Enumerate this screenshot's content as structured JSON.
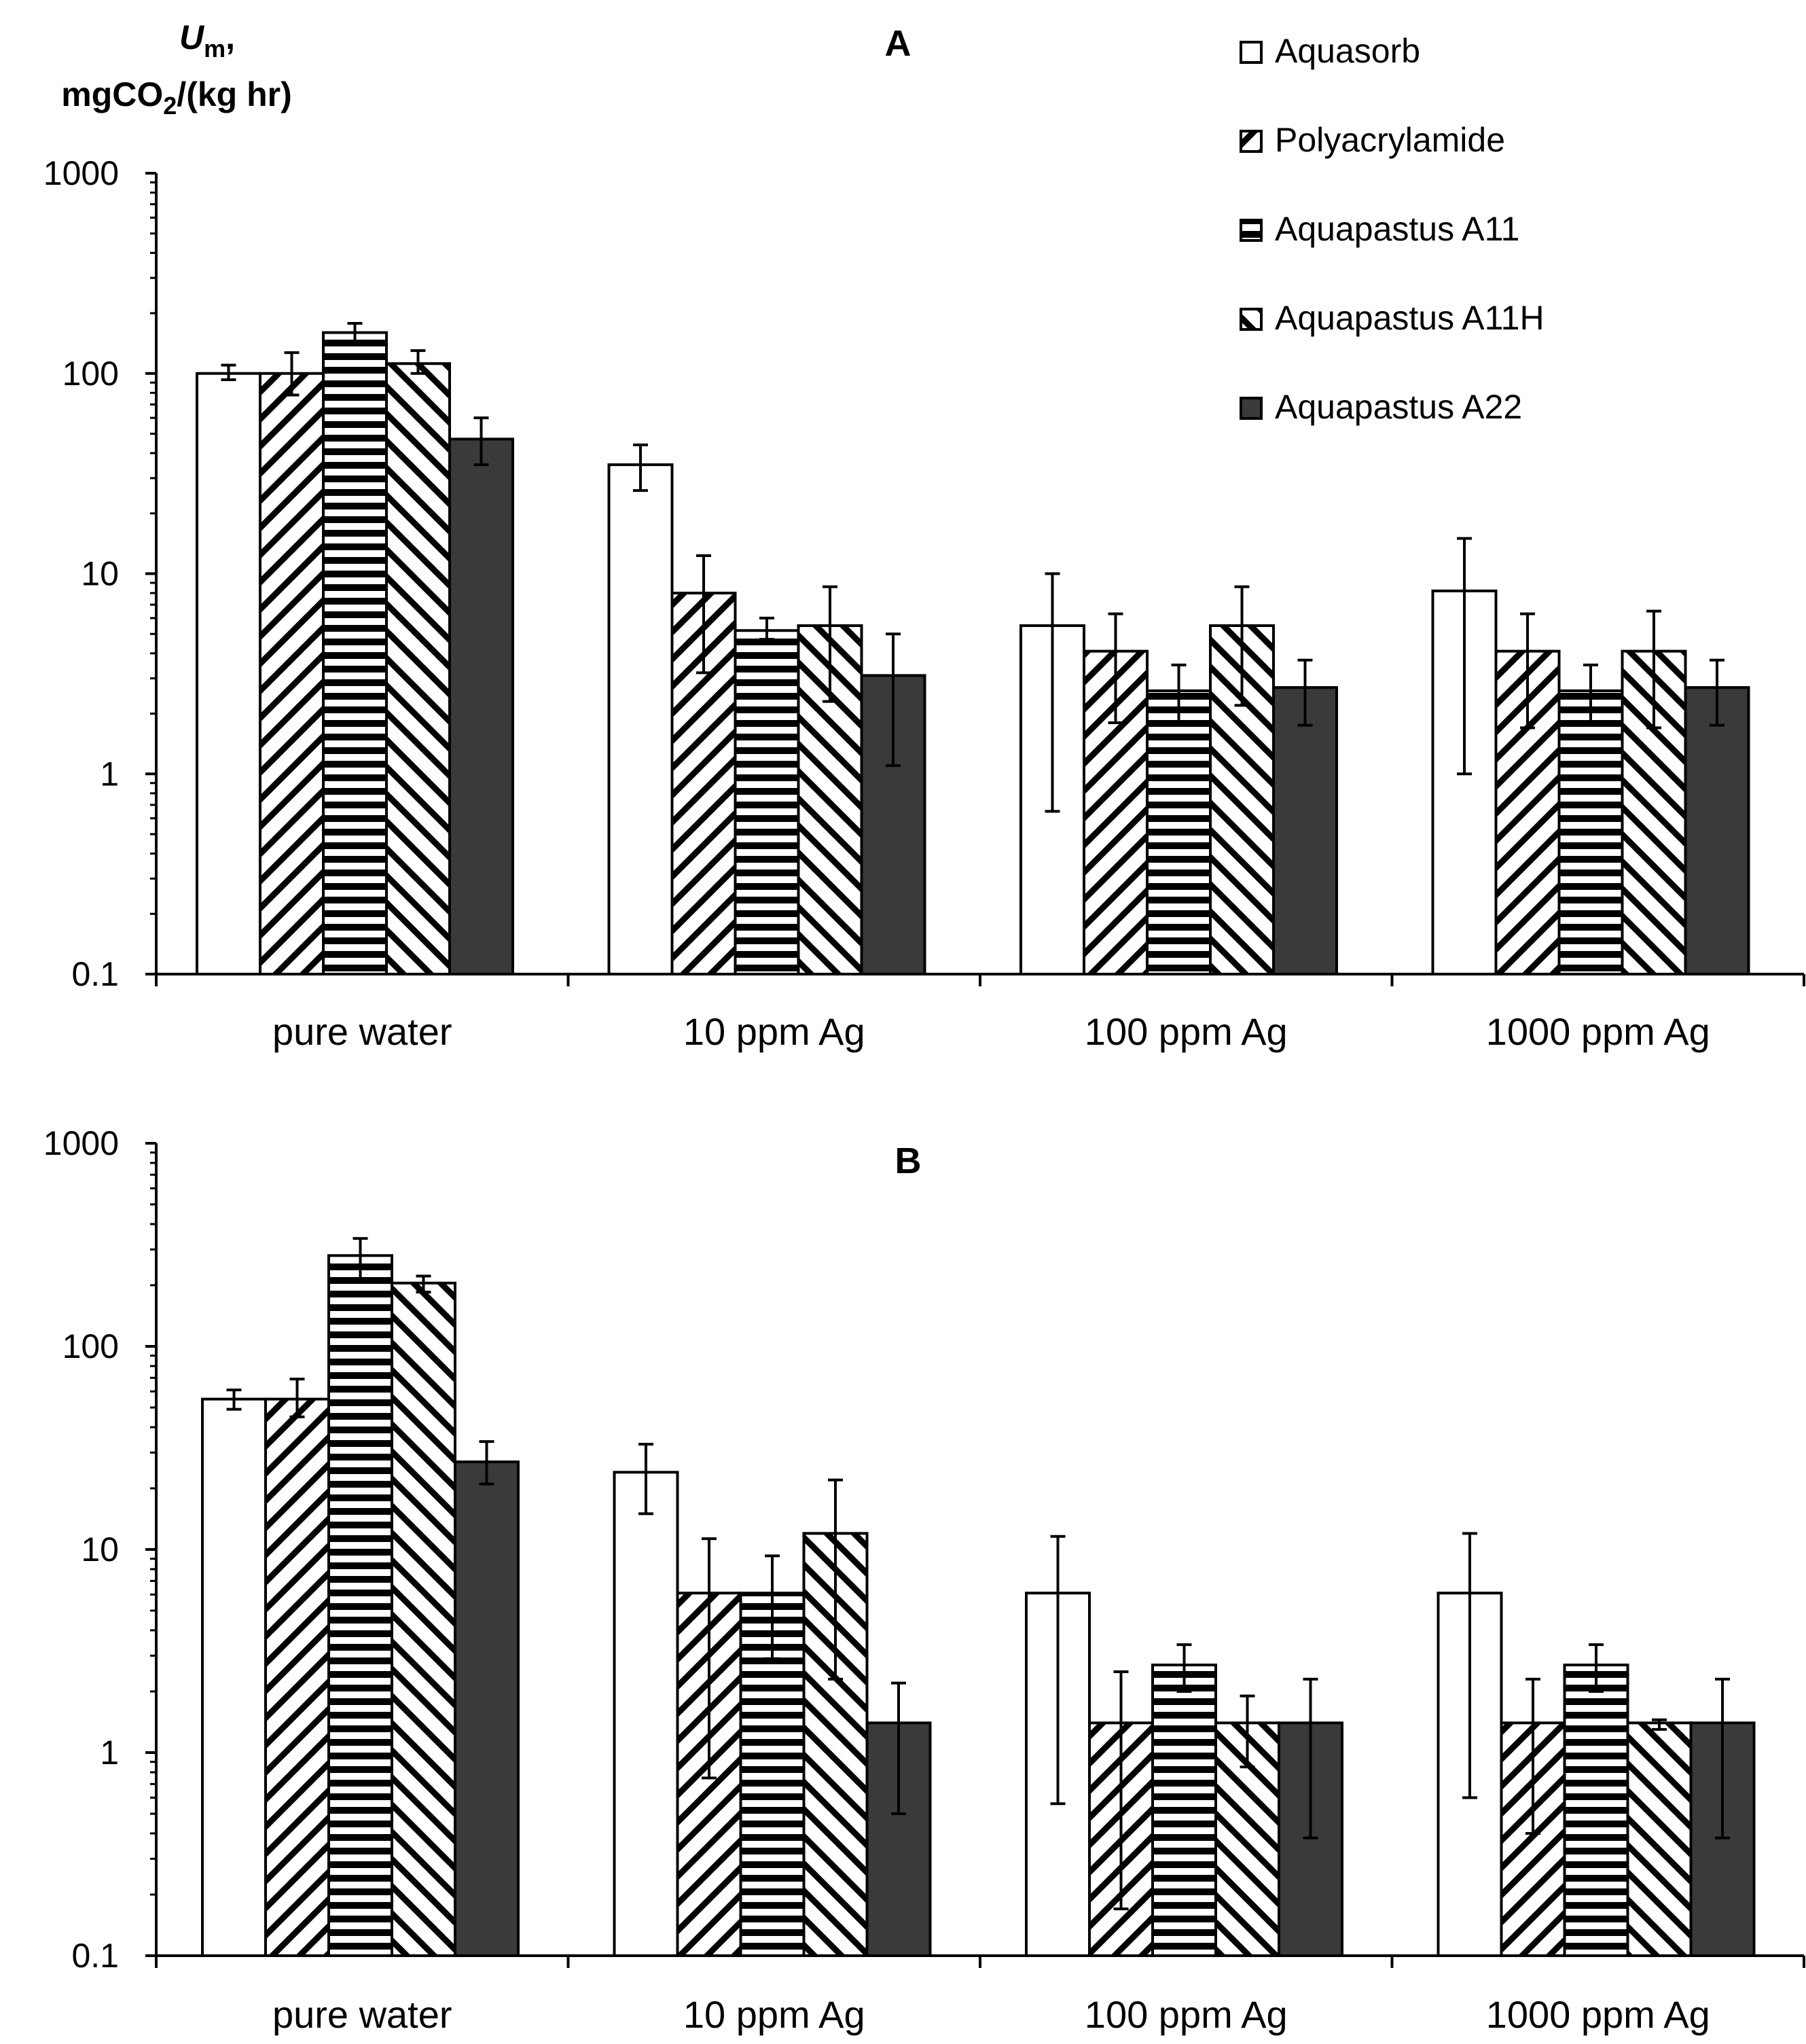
{
  "ylabel": {
    "symbol": "U",
    "subscript": "m",
    "suffix": ",",
    "units_pre": "mgCO",
    "units_sub": "2",
    "units_post": "/(kg hr)"
  },
  "legend": [
    {
      "name": "Aquasorb",
      "pattern": "white"
    },
    {
      "name": "Polyacrylamide",
      "pattern": "diag-up"
    },
    {
      "name": "Aquapastus A11",
      "pattern": "horiz"
    },
    {
      "name": "Aquapastus A11H",
      "pattern": "diag-down"
    },
    {
      "name": "Aquapastus A22",
      "pattern": "dark"
    }
  ],
  "colors": {
    "dark_fill": "#3a3a3a",
    "line": "#000000",
    "background": "#ffffff"
  },
  "chart_data": [
    {
      "type": "bar",
      "title": "A",
      "yscale": "log",
      "ylim": [
        0.1,
        1000
      ],
      "yticks": [
        "0.1",
        "1",
        "10",
        "100",
        "1000"
      ],
      "categories": [
        "pure water",
        "10 ppm Ag",
        "100 ppm Ag",
        "1000 ppm Ag"
      ],
      "series": [
        {
          "name": "Aquasorb",
          "values": [
            100,
            35,
            5.5,
            8.2
          ],
          "err_low": [
            93,
            26,
            0.65,
            1.0
          ],
          "err_high": [
            110,
            44,
            10,
            15
          ]
        },
        {
          "name": "Polyacrylamide",
          "values": [
            100,
            8,
            4.1,
            4.1
          ],
          "err_low": [
            78,
            3.2,
            1.8,
            1.7
          ],
          "err_high": [
            127,
            12.3,
            6.3,
            6.3
          ]
        },
        {
          "name": "Aquapastus A11",
          "values": [
            160,
            5.2,
            2.6,
            2.6
          ],
          "err_low": [
            145,
            4.7,
            1.8,
            1.8
          ],
          "err_high": [
            178,
            6.0,
            3.5,
            3.5
          ]
        },
        {
          "name": "Aquapastus A11H",
          "values": [
            112,
            5.5,
            5.5,
            4.1
          ],
          "err_low": [
            100,
            2.3,
            2.2,
            1.7
          ],
          "err_high": [
            130,
            8.6,
            8.6,
            6.5
          ]
        },
        {
          "name": "Aquapastus A22",
          "values": [
            47,
            3.1,
            2.7,
            2.7
          ],
          "err_low": [
            35,
            1.1,
            1.75,
            1.75
          ],
          "err_high": [
            60,
            5.0,
            3.7,
            3.7
          ]
        }
      ]
    },
    {
      "type": "bar",
      "title": "B",
      "yscale": "log",
      "ylim": [
        0.1,
        1000
      ],
      "yticks": [
        "0.1",
        "1",
        "10",
        "100",
        "1000"
      ],
      "categories": [
        "pure water",
        "10 ppm Ag",
        "100 ppm Ag",
        "1000 ppm Ag"
      ],
      "series": [
        {
          "name": "Aquasorb",
          "values": [
            55,
            24,
            6.1,
            6.1
          ],
          "err_low": [
            49,
            15,
            0.56,
            0.6
          ],
          "err_high": [
            61,
            33,
            11.6,
            12
          ]
        },
        {
          "name": "Polyacrylamide",
          "values": [
            55,
            6.1,
            1.4,
            1.4
          ],
          "err_low": [
            45,
            0.75,
            0.17,
            0.4
          ],
          "err_high": [
            69,
            11.3,
            2.5,
            2.3
          ]
        },
        {
          "name": "Aquapastus A11",
          "values": [
            280,
            6.1,
            2.7,
            2.7
          ],
          "err_low": [
            215,
            2.9,
            2.0,
            2.0
          ],
          "err_high": [
            340,
            9.3,
            3.4,
            3.4
          ]
        },
        {
          "name": "Aquapastus A11H",
          "values": [
            205,
            12,
            1.4,
            1.4
          ],
          "err_low": [
            185,
            2.3,
            0.85,
            1.3
          ],
          "err_high": [
            222,
            22,
            1.9,
            1.45
          ]
        },
        {
          "name": "Aquapastus A22",
          "values": [
            27,
            1.4,
            1.4,
            1.4
          ],
          "err_low": [
            21,
            0.5,
            0.38,
            0.38
          ],
          "err_high": [
            34,
            2.2,
            2.3,
            2.3
          ]
        }
      ]
    }
  ]
}
